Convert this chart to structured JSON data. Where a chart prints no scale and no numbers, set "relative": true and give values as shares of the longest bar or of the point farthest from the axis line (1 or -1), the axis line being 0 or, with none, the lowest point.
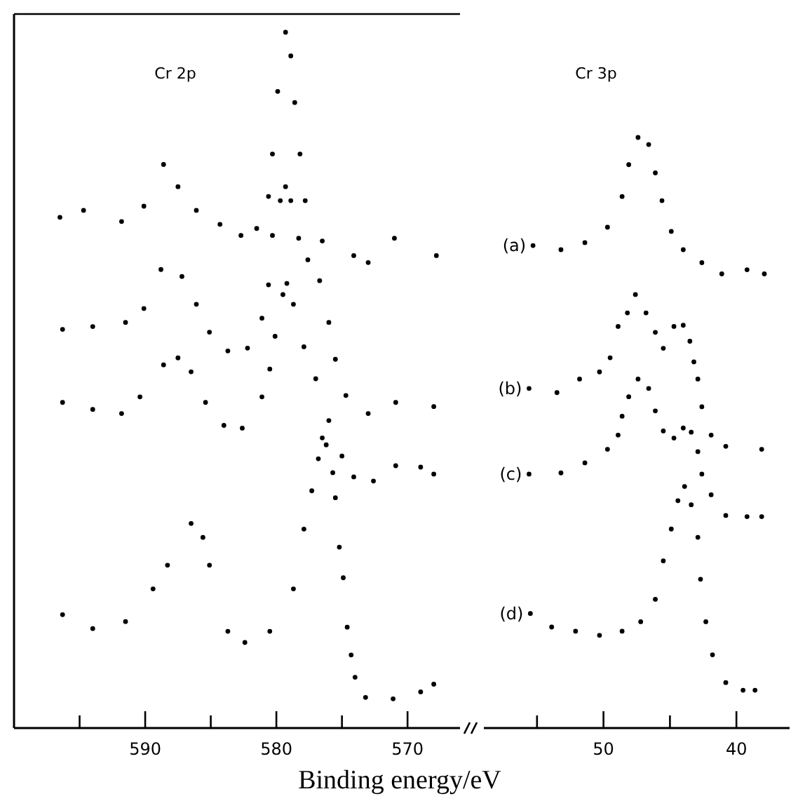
{
  "chart_data": [
    {
      "type": "scatter",
      "title": "Cr 2p",
      "xlabel": "Binding energy/eV",
      "relative": true,
      "marker": "circle",
      "xlim": [
        600,
        566
      ],
      "xticks": [
        {
          "value": 595,
          "label": null
        },
        590,
        {
          "value": 585,
          "label": null
        },
        580,
        {
          "value": 575,
          "label": null
        },
        570
      ],
      "series": [
        {
          "color": "#000000",
          "x": [
            596.5,
            594.7,
            591.8,
            590.1,
            588.6,
            587.5,
            586.1,
            584.3,
            582.7,
            581.5,
            580.6,
            580.3,
            579.9,
            579.3,
            578.9,
            578.6,
            578.2,
            577.8,
            576.5,
            574.1,
            573,
            571,
            567.8
          ],
          "values": [
            0.734,
            0.744,
            0.728,
            0.75,
            0.81,
            0.778,
            0.744,
            0.724,
            0.708,
            0.718,
            0.764,
            0.825,
            0.915,
            1,
            0.966,
            0.899,
            0.825,
            0.758,
            0.7,
            0.679,
            0.669,
            0.704,
            0.679
          ]
        },
        {
          "color": "#000000",
          "x": [
            596.3,
            594,
            591.5,
            590.1,
            588.8,
            587.2,
            586.1,
            585.1,
            583.7,
            582.2,
            581.1,
            580.6,
            580.3,
            579.7,
            579.3,
            578.9,
            578.3,
            577.6,
            576.7,
            576,
            575.5,
            574.7,
            573,
            570.9,
            568
          ],
          "values": [
            0.573,
            0.577,
            0.583,
            0.603,
            0.659,
            0.649,
            0.609,
            0.569,
            0.542,
            0.546,
            0.589,
            0.637,
            0.708,
            0.758,
            0.778,
            0.758,
            0.704,
            0.673,
            0.643,
            0.583,
            0.53,
            0.478,
            0.452,
            0.468,
            0.462
          ]
        },
        {
          "color": "#000000",
          "x": [
            596.3,
            594,
            591.8,
            590.4,
            588.6,
            587.5,
            586.5,
            585.4,
            584,
            582.6,
            581.1,
            580.5,
            580.1,
            579.5,
            579.2,
            578.7,
            577.9,
            577,
            576,
            575,
            574.1,
            572.6,
            570.9,
            569,
            568
          ],
          "values": [
            0.468,
            0.458,
            0.452,
            0.476,
            0.522,
            0.532,
            0.512,
            0.468,
            0.435,
            0.431,
            0.476,
            0.516,
            0.563,
            0.623,
            0.639,
            0.609,
            0.548,
            0.502,
            0.442,
            0.391,
            0.361,
            0.355,
            0.377,
            0.375,
            0.365
          ]
        },
        {
          "color": "#000000",
          "x": [
            596.3,
            594,
            591.5,
            589.4,
            588.3,
            586.5,
            585.6,
            585.1,
            583.7,
            582.4,
            580.5,
            578.7,
            577.9,
            577.3,
            576.8,
            576.5,
            576.2,
            575.7,
            575.5,
            575.2,
            574.9,
            574.6,
            574.3,
            574,
            573.2,
            571.1,
            569,
            568
          ],
          "values": [
            0.163,
            0.143,
            0.153,
            0.2,
            0.234,
            0.294,
            0.274,
            0.234,
            0.139,
            0.123,
            0.139,
            0.2,
            0.286,
            0.341,
            0.387,
            0.417,
            0.407,
            0.367,
            0.331,
            0.26,
            0.216,
            0.145,
            0.105,
            0.073,
            0.044,
            0.042,
            0.052,
            0.063
          ]
        }
      ]
    },
    {
      "type": "scatter",
      "title": "Cr 3p",
      "relative": true,
      "marker": "circle",
      "xlim": [
        59,
        36
      ],
      "xticks": [
        {
          "value": 55,
          "label": null
        },
        50,
        {
          "value": 45,
          "label": null
        },
        40
      ],
      "series": [
        {
          "name": "(a)",
          "color": "#000000",
          "x": [
            55.3,
            53.2,
            51.4,
            49.7,
            48.6,
            48.1,
            47.4,
            46.6,
            46.1,
            45.6,
            44.9,
            44,
            42.6,
            41.1,
            39.2,
            37.9
          ],
          "values": [
            0.817,
            0.81,
            0.822,
            0.848,
            0.9,
            0.954,
            1,
            0.988,
            0.94,
            0.893,
            0.841,
            0.81,
            0.788,
            0.769,
            0.776,
            0.769
          ]
        },
        {
          "name": "(b)",
          "color": "#000000",
          "x": [
            55.6,
            53.5,
            51.8,
            50.3,
            49.5,
            48.9,
            48.2,
            47.6,
            46.8,
            46.1,
            45.5,
            44.7,
            44,
            43.5,
            43.2,
            42.9,
            42.6,
            41.9,
            40.8,
            38.1
          ],
          "values": [
            0.575,
            0.568,
            0.591,
            0.603,
            0.627,
            0.68,
            0.703,
            0.734,
            0.703,
            0.67,
            0.643,
            0.68,
            0.682,
            0.655,
            0.62,
            0.591,
            0.544,
            0.496,
            0.477,
            0.472
          ]
        },
        {
          "name": "(c)",
          "color": "#000000",
          "x": [
            55.6,
            53.2,
            51.4,
            49.7,
            48.9,
            48.6,
            48.1,
            47.4,
            46.6,
            46.1,
            45.5,
            44.7,
            44,
            43.4,
            42.9,
            42.6,
            41.9,
            40.8,
            39.2,
            38.1
          ],
          "values": [
            0.43,
            0.432,
            0.449,
            0.472,
            0.496,
            0.528,
            0.561,
            0.591,
            0.575,
            0.537,
            0.503,
            0.491,
            0.508,
            0.501,
            0.468,
            0.43,
            0.395,
            0.36,
            0.358,
            0.358
          ]
        },
        {
          "name": "(d)",
          "color": "#000000",
          "x": [
            55.5,
            53.9,
            52.1,
            50.3,
            48.6,
            47.2,
            46.1,
            45.5,
            44.9,
            44.4,
            43.9,
            43.4,
            42.9,
            42.7,
            42.3,
            41.8,
            40.8,
            39.5,
            38.6
          ],
          "values": [
            0.194,
            0.171,
            0.164,
            0.157,
            0.164,
            0.18,
            0.218,
            0.283,
            0.337,
            0.385,
            0.409,
            0.378,
            0.323,
            0.252,
            0.18,
            0.124,
            0.077,
            0.064,
            0.064
          ]
        }
      ]
    }
  ]
}
